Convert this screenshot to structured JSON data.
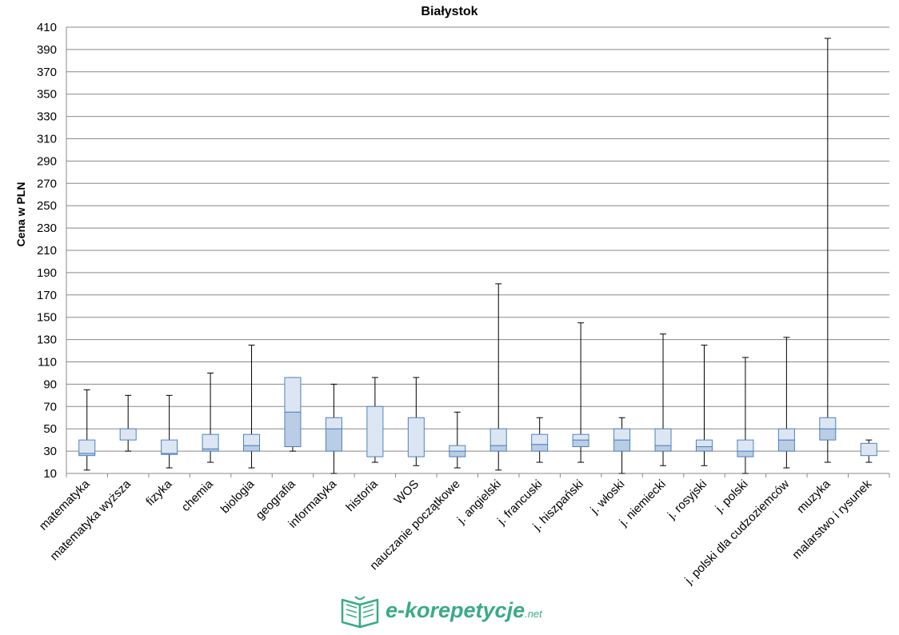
{
  "chart_data": {
    "type": "boxplot",
    "title": "Białystok",
    "ylabel": "Cena w PLN",
    "xlabel": "",
    "ylim": [
      10,
      410
    ],
    "yticks": [
      10,
      30,
      50,
      70,
      90,
      110,
      130,
      150,
      170,
      190,
      210,
      230,
      250,
      270,
      290,
      310,
      330,
      350,
      370,
      390,
      410
    ],
    "grid": true,
    "categories": [
      "matematyka",
      "matematyka wyższa",
      "fizyka",
      "chemia",
      "biologia",
      "geografia",
      "informatyka",
      "historia",
      "WOS",
      "nauczanie początkowe",
      "j. angielski",
      "j. francuski",
      "j. hiszpański",
      "j. włoski",
      "j. niemiecki",
      "j. rosyjski",
      "j. polski",
      "j. polski dla cudzoziemców",
      "muzyka",
      "malarstwo i rysunek"
    ],
    "series": [
      {
        "min": 13,
        "q1": 26,
        "median": 28,
        "q3": 40,
        "max": 85
      },
      {
        "min": 30,
        "q1": 40,
        "median": 40,
        "q3": 50,
        "max": 80
      },
      {
        "min": 15,
        "q1": 27,
        "median": 28,
        "q3": 40,
        "max": 80
      },
      {
        "min": 20,
        "q1": 30,
        "median": 32,
        "q3": 45,
        "max": 100
      },
      {
        "min": 15,
        "q1": 30,
        "median": 35,
        "q3": 45,
        "max": 125
      },
      {
        "min": 30,
        "q1": 34,
        "median": 65,
        "q3": 96,
        "max": 96
      },
      {
        "min": 10,
        "q1": 30,
        "median": 50,
        "q3": 60,
        "max": 90
      },
      {
        "min": 20,
        "q1": 25,
        "median": 25,
        "q3": 70,
        "max": 96
      },
      {
        "min": 17,
        "q1": 25,
        "median": 25,
        "q3": 60,
        "max": 96
      },
      {
        "min": 15,
        "q1": 25,
        "median": 30,
        "q3": 35,
        "max": 65
      },
      {
        "min": 13,
        "q1": 30,
        "median": 35,
        "q3": 50,
        "max": 180
      },
      {
        "min": 20,
        "q1": 30,
        "median": 36,
        "q3": 45,
        "max": 60
      },
      {
        "min": 20,
        "q1": 34,
        "median": 40,
        "q3": 45,
        "max": 145
      },
      {
        "min": 10,
        "q1": 30,
        "median": 40,
        "q3": 50,
        "max": 60
      },
      {
        "min": 17,
        "q1": 30,
        "median": 35,
        "q3": 50,
        "max": 135
      },
      {
        "min": 17,
        "q1": 30,
        "median": 34,
        "q3": 40,
        "max": 125
      },
      {
        "min": 10,
        "q1": 25,
        "median": 30,
        "q3": 40,
        "max": 114
      },
      {
        "min": 15,
        "q1": 30,
        "median": 40,
        "q3": 50,
        "max": 132
      },
      {
        "min": 20,
        "q1": 40,
        "median": 50,
        "q3": 60,
        "max": 400
      },
      {
        "min": 20,
        "q1": 26,
        "median": 26,
        "q3": 37,
        "max": 40
      }
    ],
    "colors": {
      "box_lower": "#b9cde5",
      "box_upper": "#dce6f2",
      "box_border": "#4f81bd",
      "whisker": "#000000",
      "grid": "#888888"
    }
  },
  "logo": {
    "brand": "e-korepetycje",
    "suffix": ".net",
    "color": "#3aaa87"
  }
}
